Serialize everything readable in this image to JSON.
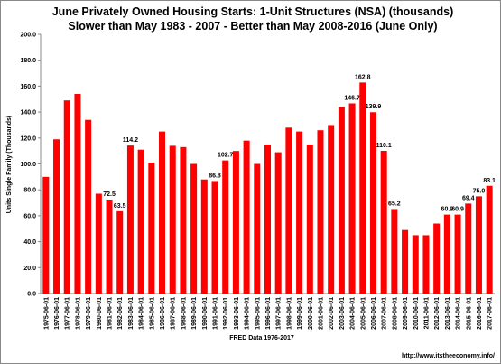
{
  "chart_data": {
    "type": "bar",
    "title": "June Privately Owned Housing Starts: 1-Unit Structures (NSA) (thousands)",
    "subtitle": "Slower than May 1983 - 2007  - Better than May 2008-2016 (June Only)",
    "y_label": "Units Single Family (Thousands)",
    "x_label": "FRED  Data 1976-2017",
    "footer": "http://www.itstheeconomy.info/",
    "color": "#ff0000",
    "categories": [
      "1975-06-01",
      "1976-06-01",
      "1977-06-01",
      "1978-06-01",
      "1979-06-01",
      "1980-06-01",
      "1981-06-01",
      "1982-06-01",
      "1983-06-01",
      "1984-06-01",
      "1985-06-01",
      "1986-06-01",
      "1987-06-01",
      "1988-06-01",
      "1989-06-01",
      "1990-06-01",
      "1991-06-01",
      "1992-06-01",
      "1993-06-01",
      "1994-06-01",
      "1995-06-01",
      "1996-06-01",
      "1997-06-01",
      "1998-06-01",
      "1999-06-01",
      "2000-06-01",
      "2001-06-01",
      "2002-06-01",
      "2003-06-01",
      "2004-06-01",
      "2005-06-01",
      "2006-06-01",
      "2007-06-01",
      "2008-06-01",
      "2009-06-01",
      "2010-06-01",
      "2011-06-01",
      "2012-06-01",
      "2013-06-01",
      "2014-06-01",
      "2015-06-01",
      "2016-06-01",
      "2017-06-01"
    ],
    "values": [
      90,
      119,
      149,
      154,
      134,
      77,
      72.5,
      63.5,
      114.2,
      111,
      101,
      125,
      114,
      113,
      100,
      88,
      86.8,
      102.7,
      110,
      118,
      100,
      115,
      109,
      128,
      125,
      115,
      126,
      130,
      144,
      146.7,
      162.8,
      139.9,
      110.1,
      65.2,
      49,
      45,
      45,
      54,
      60.9,
      60.9,
      69.4,
      75,
      83.1
    ],
    "value_labels": [
      null,
      null,
      null,
      null,
      null,
      null,
      "72.5",
      "63.5",
      "114.2",
      null,
      null,
      null,
      null,
      null,
      null,
      null,
      "86.8",
      "102.7",
      null,
      null,
      null,
      null,
      null,
      null,
      null,
      null,
      null,
      null,
      null,
      "146.7",
      "162.8",
      "139.9",
      "110.1",
      "65.2",
      null,
      null,
      null,
      null,
      "60.9",
      "60.9",
      "69.4",
      "75.0",
      "83.1"
    ],
    "ylim": [
      0,
      200
    ],
    "yticks": [
      {
        "value": 0,
        "label": "0.0"
      },
      {
        "value": 20,
        "label": "20.0"
      },
      {
        "value": 40,
        "label": "40.0"
      },
      {
        "value": 60,
        "label": "60.0"
      },
      {
        "value": 80,
        "label": "80.0"
      },
      {
        "value": 100,
        "label": "100.0"
      },
      {
        "value": 120,
        "label": "120.0"
      },
      {
        "value": 140,
        "label": "140.0"
      },
      {
        "value": 160,
        "label": "160.0"
      },
      {
        "value": 180,
        "label": "180.0"
      },
      {
        "value": 200,
        "label": "200.0"
      }
    ]
  }
}
